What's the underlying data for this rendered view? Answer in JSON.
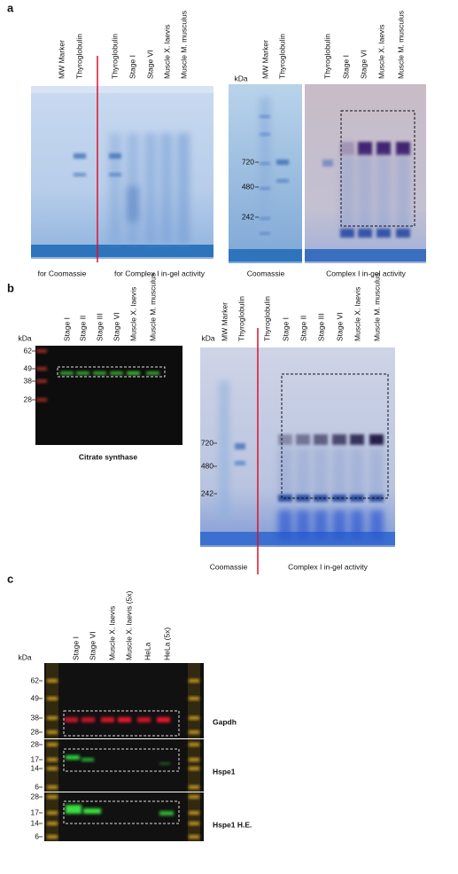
{
  "panel_a": {
    "label": "a",
    "gel_left": {
      "lanes": [
        "MW Marker",
        "Thyroglobulin",
        "Thyroglobulin",
        "Stage I",
        "Stage VI",
        "Muscle X. laevis",
        "Muscle M. musculus"
      ],
      "captions": [
        "for Coomassie",
        "for Complex I in-gel activity"
      ]
    },
    "gel_coomassie": {
      "unit": "kDa",
      "lanes": [
        "MW Marker",
        "Thyroglobulin"
      ],
      "markers": [
        "720",
        "480",
        "242"
      ],
      "caption": "Coomassie"
    },
    "gel_activity": {
      "lanes": [
        "Thyroglobulin",
        "Stage I",
        "Stage VI",
        "Muscle X. laevis",
        "Muscle M. musculus"
      ],
      "caption": "Complex I in-gel activity"
    }
  },
  "panel_b": {
    "label": "b",
    "western": {
      "unit": "kDa",
      "markers": [
        "62",
        "49",
        "38",
        "28"
      ],
      "lanes": [
        "Stage I",
        "Stage II",
        "Stage III",
        "Stage VI",
        "Muscle X. laevis",
        "Muscle M. musculus"
      ],
      "caption": "Citrate synthase"
    },
    "gel": {
      "unit": "kDa",
      "lanes": [
        "MW Marker",
        "Thyroglobulin",
        "Thyroglobulin",
        "Stage I",
        "Stage II",
        "Stage III",
        "Stage VI",
        "Muscle X. laevis",
        "Muscle M. musculus"
      ],
      "markers": [
        "720",
        "480",
        "242"
      ],
      "captions": [
        "Coomassie",
        "Complex I in-gel activity"
      ]
    }
  },
  "panel_c": {
    "label": "c",
    "unit": "kDa",
    "lanes": [
      "Stage I",
      "Stage VI",
      "Muscle X. laevis",
      "Muscle X. laevis (5x)",
      "HeLa",
      "HeLa (5x)"
    ],
    "blots": [
      {
        "markers": [
          "62",
          "49",
          "38",
          "28"
        ],
        "label": "Gapdh"
      },
      {
        "markers": [
          "28",
          "17",
          "14",
          "6"
        ],
        "label": "Hspe1"
      },
      {
        "markers": [
          "28",
          "17",
          "14",
          "6"
        ],
        "label": "Hspe1 H.E."
      }
    ]
  }
}
